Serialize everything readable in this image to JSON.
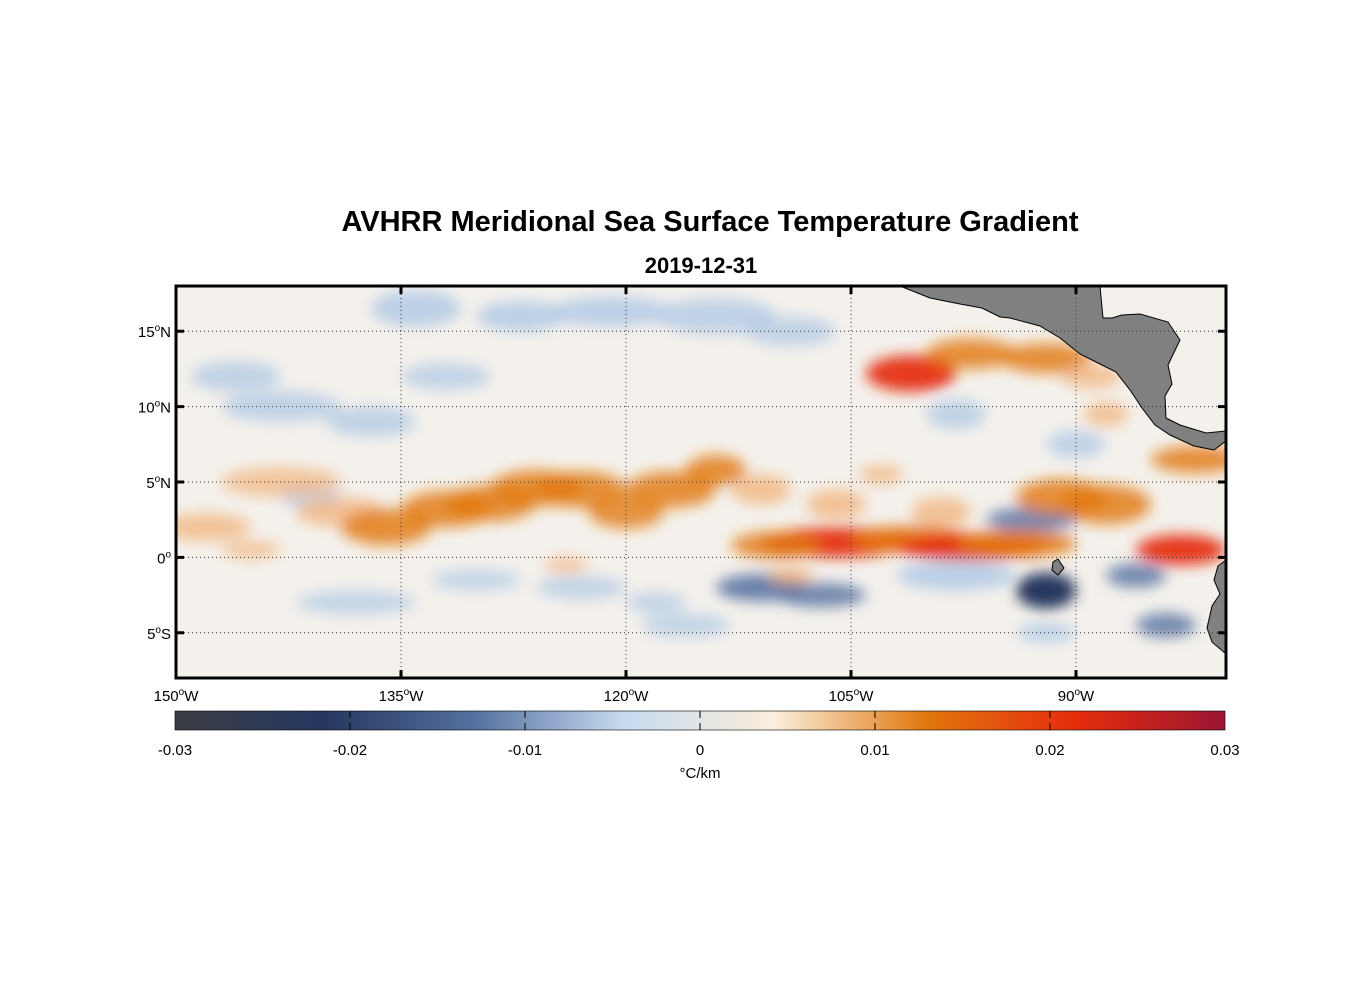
{
  "title": "AVHRR Meridional Sea Surface Temperature Gradient",
  "subtitle": "2019-12-31",
  "map": {
    "lon_range": [
      -150,
      -80
    ],
    "lat_range": [
      -8,
      18
    ],
    "grid": "dotted",
    "land_color": "#808080",
    "lat_labels": [
      {
        "value": 15,
        "label": "15",
        "hemi": "N"
      },
      {
        "value": 10,
        "label": "10",
        "hemi": "N"
      },
      {
        "value": 5,
        "label": "5",
        "hemi": "N"
      },
      {
        "value": 0,
        "label": "0",
        "hemi": ""
      },
      {
        "value": -5,
        "label": "5",
        "hemi": "S"
      }
    ],
    "lon_labels": [
      {
        "value": -150,
        "label": "150",
        "hemi": "W"
      },
      {
        "value": -135,
        "label": "135",
        "hemi": "W"
      },
      {
        "value": -120,
        "label": "120",
        "hemi": "W"
      },
      {
        "value": -105,
        "label": "105",
        "hemi": "W"
      },
      {
        "value": -90,
        "label": "90",
        "hemi": "W"
      }
    ]
  },
  "colorbar": {
    "range": [
      -0.03,
      0.03
    ],
    "ticks": [
      "-0.03",
      "-0.02",
      "-0.01",
      "0",
      "0.01",
      "0.02",
      "0.03"
    ],
    "label": "°C/km",
    "colors": [
      "#3b3d43",
      "#25375f",
      "#5570a0",
      "#c7dbf0",
      "#fbeedb",
      "#e2780e",
      "#e52d0c",
      "#9c1533"
    ]
  },
  "features": {
    "positive": [
      [
        -148,
        2,
        3,
        0.9,
        0.5
      ],
      [
        -143,
        5,
        4,
        1.0,
        0.4
      ],
      [
        -139,
        3,
        3,
        1.0,
        0.5
      ],
      [
        -136,
        2,
        3,
        1.2,
        0.6
      ],
      [
        -132,
        3.2,
        3,
        1.2,
        0.6
      ],
      [
        -129,
        3.6,
        3,
        1.2,
        0.6
      ],
      [
        -126,
        4.6,
        3,
        1.2,
        0.6
      ],
      [
        -123,
        4.5,
        3,
        1.2,
        0.6
      ],
      [
        -120,
        3,
        2.5,
        1.1,
        0.55
      ],
      [
        -117,
        4.5,
        3,
        1.2,
        0.6
      ],
      [
        -114,
        5.8,
        2,
        1.0,
        0.6
      ],
      [
        -111,
        4.5,
        2,
        1.0,
        0.5
      ],
      [
        -106,
        3.5,
        2,
        1.0,
        0.5
      ],
      [
        -106,
        1,
        5,
        1.0,
        0.8
      ],
      [
        -110,
        0.8,
        3,
        0.9,
        0.6
      ],
      [
        -101,
        1.2,
        4,
        0.9,
        0.7
      ],
      [
        -97,
        0.7,
        5,
        0.9,
        0.8
      ],
      [
        -94,
        0.9,
        4,
        0.9,
        0.7
      ],
      [
        -91,
        4,
        3,
        1.2,
        0.6
      ],
      [
        -88,
        3.5,
        3,
        1.3,
        0.6
      ],
      [
        -83,
        0.5,
        3,
        1.0,
        0.8
      ],
      [
        -101,
        12.2,
        3,
        1.2,
        0.8
      ],
      [
        -97,
        13.5,
        3,
        1.0,
        0.6
      ],
      [
        -92,
        13.2,
        3,
        1.0,
        0.6
      ],
      [
        -89,
        12,
        2,
        0.8,
        0.5
      ],
      [
        -82,
        6.5,
        3,
        0.9,
        0.6
      ],
      [
        -88,
        9.5,
        1.5,
        0.8,
        0.5
      ],
      [
        -109,
        -1.2,
        1.5,
        0.6,
        0.5
      ],
      [
        -99,
        3,
        2,
        1.0,
        0.5
      ],
      [
        -124,
        -0.5,
        1.5,
        0.5,
        0.4
      ],
      [
        -103,
        5.5,
        1.5,
        0.6,
        0.5
      ],
      [
        -145,
        0.5,
        2,
        0.6,
        0.35
      ]
    ],
    "negative": [
      [
        -134,
        16.5,
        3,
        1.2,
        0.5
      ],
      [
        -127,
        16,
        3,
        1.0,
        0.5
      ],
      [
        -121,
        16.3,
        4,
        1.0,
        0.5
      ],
      [
        -114,
        16,
        4,
        1.2,
        0.4
      ],
      [
        -109,
        15,
        3,
        1.0,
        0.35
      ],
      [
        -143,
        10,
        4,
        1.0,
        0.4
      ],
      [
        -137,
        9,
        3,
        1.0,
        0.4
      ],
      [
        -141,
        4,
        2,
        0.8,
        0.3
      ],
      [
        -111,
        -2,
        3,
        0.9,
        0.7
      ],
      [
        -107,
        -2.5,
        3,
        0.8,
        0.6
      ],
      [
        -98,
        -1.2,
        4,
        1.0,
        0.5
      ],
      [
        -92,
        -2.2,
        2,
        1.2,
        1.0
      ],
      [
        -86,
        -1.2,
        2,
        0.8,
        0.6
      ],
      [
        -84,
        -4.5,
        2,
        0.8,
        0.6
      ],
      [
        -92,
        -5,
        2,
        0.6,
        0.5
      ],
      [
        -138,
        -3,
        4,
        0.8,
        0.3
      ],
      [
        -130,
        -1.5,
        3,
        0.7,
        0.3
      ],
      [
        -123,
        -2,
        3,
        0.8,
        0.3
      ],
      [
        -118,
        -3,
        2,
        0.7,
        0.3
      ],
      [
        -93,
        2.5,
        3,
        0.8,
        0.6
      ],
      [
        -98,
        9.5,
        2,
        1.0,
        0.4
      ],
      [
        -90,
        7.5,
        2,
        0.9,
        0.4
      ],
      [
        -146,
        12,
        3,
        1.0,
        0.4
      ],
      [
        -132,
        12,
        3,
        0.9,
        0.35
      ],
      [
        -116,
        -4.5,
        3,
        0.8,
        0.3
      ]
    ]
  }
}
